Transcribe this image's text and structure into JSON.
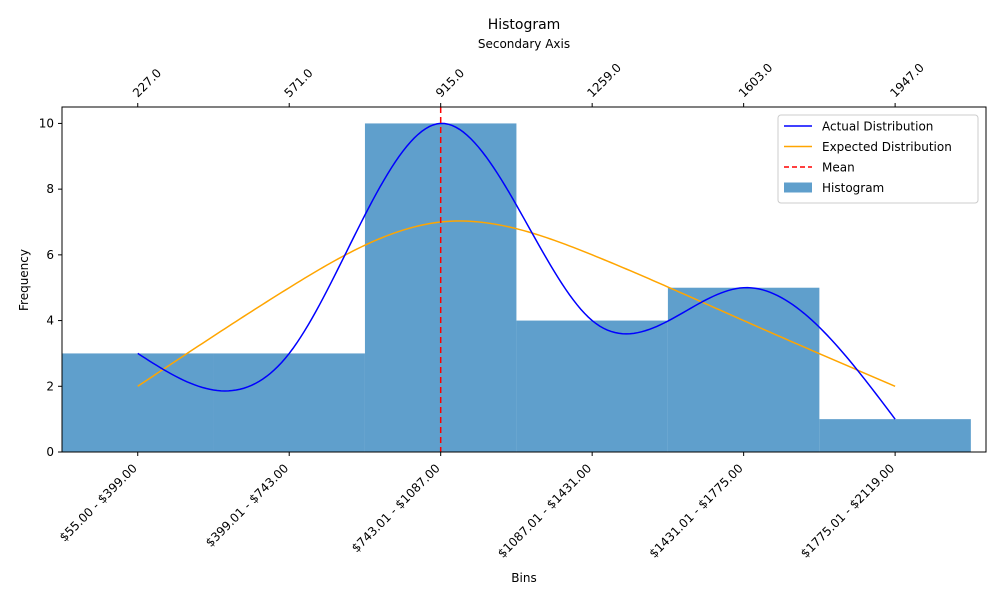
{
  "chart_data": {
    "type": "bar",
    "title": "Histogram",
    "xlabel": "Bins",
    "ylabel": "Frequency",
    "secondary_xlabel": "Secondary Axis",
    "categories": [
      "$55.00 - $399.00",
      "$399.01 - $743.00",
      "$743.01 - $1087.00",
      "$1087.01 - $1431.00",
      "$1431.01 - $1775.00",
      "$1775.01 - $2119.00"
    ],
    "secondary_ticks": [
      "227.0",
      "571.0",
      "915.0",
      "1259.0",
      "1603.0",
      "1947.0"
    ],
    "y_ticks": [
      0,
      2,
      4,
      6,
      8,
      10
    ],
    "ylim": [
      0,
      10.5
    ],
    "series": [
      {
        "name": "Histogram",
        "kind": "bar",
        "color": "#5f9fcc",
        "values": [
          3,
          3,
          10,
          4,
          5,
          1
        ]
      },
      {
        "name": "Actual Distribution",
        "kind": "smooth-line",
        "color": "#0000ff",
        "values": [
          3,
          3,
          10,
          4,
          5,
          1
        ]
      },
      {
        "name": "Expected Distribution",
        "kind": "line",
        "color": "#ffa500",
        "x": [
          0,
          1,
          2,
          3,
          4,
          5
        ],
        "values": [
          2,
          5,
          7,
          6,
          4,
          2
        ]
      },
      {
        "name": "Mean",
        "kind": "vline",
        "color": "#ff0000",
        "x": 2
      }
    ],
    "legend": [
      "Actual Distribution",
      "Expected Distribution",
      "Mean",
      "Histogram"
    ],
    "legend_position": "top-right",
    "grid": false
  }
}
